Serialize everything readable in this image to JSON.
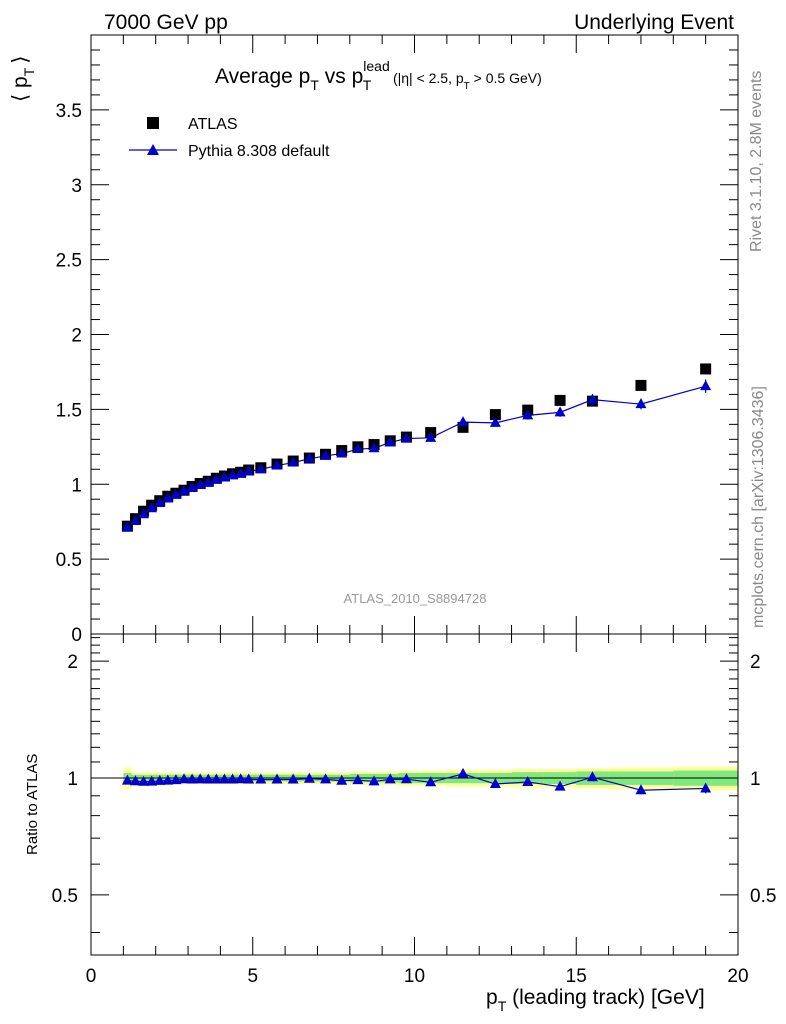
{
  "header": {
    "left": "7000 GeV pp",
    "right": "Underlying Event"
  },
  "side_labels": {
    "top": "Rivet 3.1.10,  2.8M events",
    "bottom": "mcplots.cern.ch [arXiv:1306.3436]"
  },
  "chart_data": [
    {
      "type": "scatter",
      "title_parts": {
        "a": "Average p",
        "a_sub": "T",
        "b": " vs p",
        "b_sup": "lead",
        "b_sub": "T",
        "c": " (|η| < 2.5, p",
        "c_sub": "T",
        "d": " > 0.5 GeV)"
      },
      "ylabel_parts": {
        "open": "⟨ p",
        "sub": "T",
        "close": "⟩"
      },
      "annotation": "ATLAS_2010_S8894728",
      "xlim": [
        0,
        20
      ],
      "ylim": [
        0,
        4.0
      ],
      "yticks": [
        "0",
        "0.5",
        "1",
        "1.5",
        "2",
        "2.5",
        "3",
        "3.5"
      ],
      "ytick_values": [
        0,
        0.5,
        1,
        1.5,
        2,
        2.5,
        3,
        3.5
      ],
      "legend_position": "top-left",
      "series": [
        {
          "name": "ATLAS",
          "marker": "square",
          "color": "#000000",
          "x": [
            1.125,
            1.375,
            1.625,
            1.875,
            2.125,
            2.375,
            2.625,
            2.875,
            3.125,
            3.375,
            3.625,
            3.875,
            4.125,
            4.375,
            4.625,
            4.875,
            5.25,
            5.75,
            6.25,
            6.75,
            7.25,
            7.75,
            8.25,
            8.75,
            9.25,
            9.75,
            10.5,
            11.5,
            12.5,
            13.5,
            14.5,
            15.5,
            17.0,
            19.0
          ],
          "y": [
            0.72,
            0.77,
            0.82,
            0.86,
            0.89,
            0.92,
            0.94,
            0.96,
            0.985,
            1.005,
            1.02,
            1.04,
            1.055,
            1.07,
            1.08,
            1.095,
            1.11,
            1.135,
            1.155,
            1.175,
            1.2,
            1.225,
            1.25,
            1.265,
            1.29,
            1.315,
            1.345,
            1.38,
            1.465,
            1.495,
            1.56,
            1.555,
            1.66,
            1.77
          ]
        },
        {
          "name": "Pythia 8.308 default",
          "marker": "triangle",
          "color": "#0000cc",
          "x": [
            1.125,
            1.375,
            1.625,
            1.875,
            2.125,
            2.375,
            2.625,
            2.875,
            3.125,
            3.375,
            3.625,
            3.875,
            4.125,
            4.375,
            4.625,
            4.875,
            5.25,
            5.75,
            6.25,
            6.75,
            7.25,
            7.75,
            8.25,
            8.75,
            9.25,
            9.75,
            10.5,
            11.5,
            12.5,
            13.5,
            14.5,
            15.5,
            17.0,
            19.0
          ],
          "y": [
            0.71,
            0.755,
            0.8,
            0.84,
            0.875,
            0.905,
            0.93,
            0.955,
            0.975,
            0.995,
            1.01,
            1.03,
            1.045,
            1.06,
            1.07,
            1.085,
            1.1,
            1.125,
            1.145,
            1.17,
            1.19,
            1.205,
            1.235,
            1.24,
            1.28,
            1.305,
            1.31,
            1.415,
            1.41,
            1.46,
            1.48,
            1.565,
            1.535,
            1.655
          ],
          "yerr": [
            0.01,
            0.01,
            0.01,
            0.01,
            0.01,
            0.01,
            0.01,
            0.01,
            0.01,
            0.01,
            0.01,
            0.01,
            0.01,
            0.01,
            0.01,
            0.01,
            0.012,
            0.012,
            0.012,
            0.014,
            0.014,
            0.016,
            0.016,
            0.018,
            0.018,
            0.02,
            0.02,
            0.025,
            0.025,
            0.028,
            0.03,
            0.035,
            0.035,
            0.045
          ]
        }
      ]
    },
    {
      "type": "line",
      "ylabel": "Ratio to ATLAS",
      "xlabel_parts": {
        "a": "p",
        "sub": "T",
        "b": " (leading track) [GeV]"
      },
      "xlim": [
        0,
        20
      ],
      "ylim": [
        0.35,
        2.35
      ],
      "xticks": [
        "0",
        "5",
        "10",
        "15",
        "20"
      ],
      "xtick_values": [
        0,
        5,
        10,
        15,
        20
      ],
      "yticks": [
        "0.5",
        "1",
        "2"
      ],
      "ytick_values": [
        0.5,
        1,
        2
      ],
      "bands": {
        "x_edges": [
          1.0,
          1.25,
          1.5,
          1.75,
          2.0,
          2.25,
          2.5,
          2.75,
          3.0,
          3.25,
          3.5,
          3.75,
          4.0,
          4.25,
          4.5,
          4.75,
          5.0,
          5.5,
          6.0,
          6.5,
          7.0,
          7.5,
          8.0,
          8.5,
          9.0,
          9.5,
          10.0,
          11.0,
          12.0,
          13.0,
          14.0,
          15.0,
          16.0,
          18.0,
          20.0
        ],
        "stat_halfwidth": [
          0.03,
          0.02,
          0.02,
          0.02,
          0.02,
          0.02,
          0.02,
          0.02,
          0.02,
          0.02,
          0.02,
          0.02,
          0.02,
          0.02,
          0.02,
          0.02,
          0.02,
          0.02,
          0.02,
          0.02,
          0.02,
          0.02,
          0.025,
          0.025,
          0.025,
          0.03,
          0.03,
          0.03,
          0.03,
          0.035,
          0.035,
          0.04,
          0.04,
          0.045
        ],
        "total_halfwidth": [
          0.065,
          0.035,
          0.035,
          0.035,
          0.035,
          0.035,
          0.035,
          0.035,
          0.035,
          0.035,
          0.035,
          0.035,
          0.035,
          0.035,
          0.035,
          0.035,
          0.035,
          0.035,
          0.035,
          0.035,
          0.035,
          0.035,
          0.04,
          0.04,
          0.04,
          0.045,
          0.045,
          0.05,
          0.05,
          0.055,
          0.055,
          0.06,
          0.065,
          0.07
        ],
        "stat_color": "#7fe87f",
        "total_color": "#ffff99"
      },
      "series": [
        {
          "name": "Pythia 8.308 default",
          "marker": "triangle",
          "color": "#0000cc",
          "x": [
            1.125,
            1.375,
            1.625,
            1.875,
            2.125,
            2.375,
            2.625,
            2.875,
            3.125,
            3.375,
            3.625,
            3.875,
            4.125,
            4.375,
            4.625,
            4.875,
            5.25,
            5.75,
            6.25,
            6.75,
            7.25,
            7.75,
            8.25,
            8.75,
            9.25,
            9.75,
            10.5,
            11.5,
            12.5,
            13.5,
            14.5,
            15.5,
            17.0,
            19.0
          ],
          "y": [
            0.985,
            0.981,
            0.978,
            0.979,
            0.983,
            0.985,
            0.988,
            0.993,
            0.991,
            0.992,
            0.991,
            0.991,
            0.991,
            0.991,
            0.993,
            0.991,
            0.991,
            0.991,
            0.991,
            0.996,
            0.992,
            0.984,
            0.988,
            0.98,
            0.992,
            0.993,
            0.975,
            1.025,
            0.965,
            0.977,
            0.95,
            1.005,
            0.93,
            0.94
          ],
          "yerr": [
            0.01,
            0.01,
            0.01,
            0.01,
            0.01,
            0.01,
            0.01,
            0.01,
            0.01,
            0.01,
            0.01,
            0.01,
            0.01,
            0.01,
            0.01,
            0.01,
            0.01,
            0.01,
            0.01,
            0.012,
            0.012,
            0.013,
            0.013,
            0.014,
            0.014,
            0.015,
            0.015,
            0.018,
            0.017,
            0.019,
            0.02,
            0.022,
            0.022,
            0.027
          ]
        }
      ]
    }
  ]
}
